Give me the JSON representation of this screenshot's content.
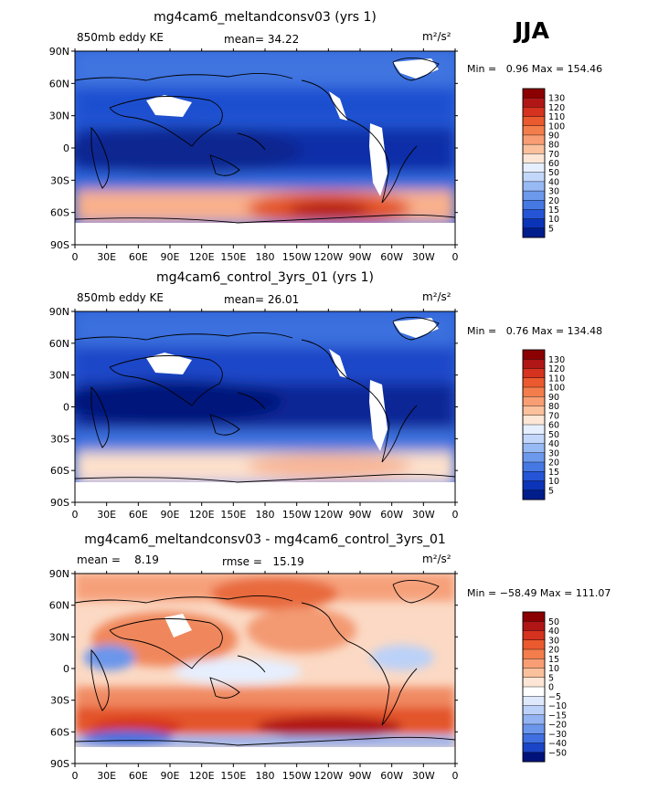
{
  "season_label": "JJA",
  "chart_data": [
    {
      "type": "heatmap",
      "title": "mg4cam6_meltandconsv03 (yrs 1)",
      "left_label": "850mb eddy KE",
      "center_label": "mean=  34.22",
      "units": "m²/s²",
      "stats_text": "Min =   0.96 Max = 154.46",
      "xticks": [
        "0",
        "30E",
        "60E",
        "90E",
        "120E",
        "150E",
        "180",
        "150W",
        "120W",
        "90W",
        "60W",
        "30W",
        "0"
      ],
      "yticks": [
        "90N",
        "60N",
        "30N",
        "0",
        "30S",
        "60S",
        "90S"
      ],
      "xlim": [
        0,
        360
      ],
      "ylim": [
        -90,
        90
      ],
      "colorbar_levels": [
        "130",
        "120",
        "110",
        "100",
        "90",
        "80",
        "70",
        "60",
        "50",
        "40",
        "30",
        "20",
        "15",
        "10",
        "5"
      ],
      "colorbar_colors": [
        "#8b0000",
        "#b11616",
        "#d5321f",
        "#ea5a2e",
        "#f47d4c",
        "#f99e74",
        "#fbc09c",
        "#fde6d6",
        "#e6efff",
        "#c3d7fb",
        "#97b9f4",
        "#6c99ec",
        "#4678e4",
        "#2555d6",
        "#0c34b8",
        "#001d8c"
      ]
    },
    {
      "type": "heatmap",
      "title": "mg4cam6_control_3yrs_01 (yrs 1)",
      "left_label": "850mb eddy KE",
      "center_label": "mean=  26.01",
      "units": "m²/s²",
      "stats_text": "Min =   0.76 Max = 134.48",
      "xticks": [
        "0",
        "30E",
        "60E",
        "90E",
        "120E",
        "150E",
        "180",
        "150W",
        "120W",
        "90W",
        "60W",
        "30W",
        "0"
      ],
      "yticks": [
        "90N",
        "60N",
        "30N",
        "0",
        "30S",
        "60S",
        "90S"
      ],
      "xlim": [
        0,
        360
      ],
      "ylim": [
        -90,
        90
      ],
      "colorbar_levels": [
        "130",
        "120",
        "110",
        "100",
        "90",
        "80",
        "70",
        "60",
        "50",
        "40",
        "30",
        "20",
        "15",
        "10",
        "5"
      ],
      "colorbar_colors": [
        "#8b0000",
        "#b11616",
        "#d5321f",
        "#ea5a2e",
        "#f47d4c",
        "#f99e74",
        "#fbc09c",
        "#fde6d6",
        "#e6efff",
        "#c3d7fb",
        "#97b9f4",
        "#6c99ec",
        "#4678e4",
        "#2555d6",
        "#0c34b8",
        "#001d8c"
      ]
    },
    {
      "type": "heatmap",
      "title": "mg4cam6_meltandconsv03 - mg4cam6_control_3yrs_01",
      "left_label": "mean =    8.19",
      "center_label": "rmse =   15.19",
      "units": "m²/s²",
      "stats_text": "Min = −58.49 Max = 111.07",
      "xticks": [
        "0",
        "30E",
        "60E",
        "90E",
        "120E",
        "150E",
        "180",
        "150W",
        "120W",
        "90W",
        "60W",
        "30W",
        "0"
      ],
      "yticks": [
        "90N",
        "60N",
        "30N",
        "0",
        "30S",
        "60S",
        "90S"
      ],
      "xlim": [
        0,
        360
      ],
      "ylim": [
        -90,
        90
      ],
      "colorbar_levels": [
        "50",
        "40",
        "30",
        "20",
        "15",
        "10",
        "5",
        "0",
        "−5",
        "−10",
        "−15",
        "−20",
        "−30",
        "−40",
        "−50"
      ],
      "colorbar_colors": [
        "#8b0000",
        "#b11616",
        "#d5321f",
        "#ea5a2e",
        "#f47d4c",
        "#f99e74",
        "#fbc09c",
        "#fde6d6",
        "#ffffff",
        "#dfe9fc",
        "#bcd1f8",
        "#93b3f2",
        "#6b96eb",
        "#3f6fe0",
        "#1a45c6",
        "#00127a"
      ]
    }
  ]
}
